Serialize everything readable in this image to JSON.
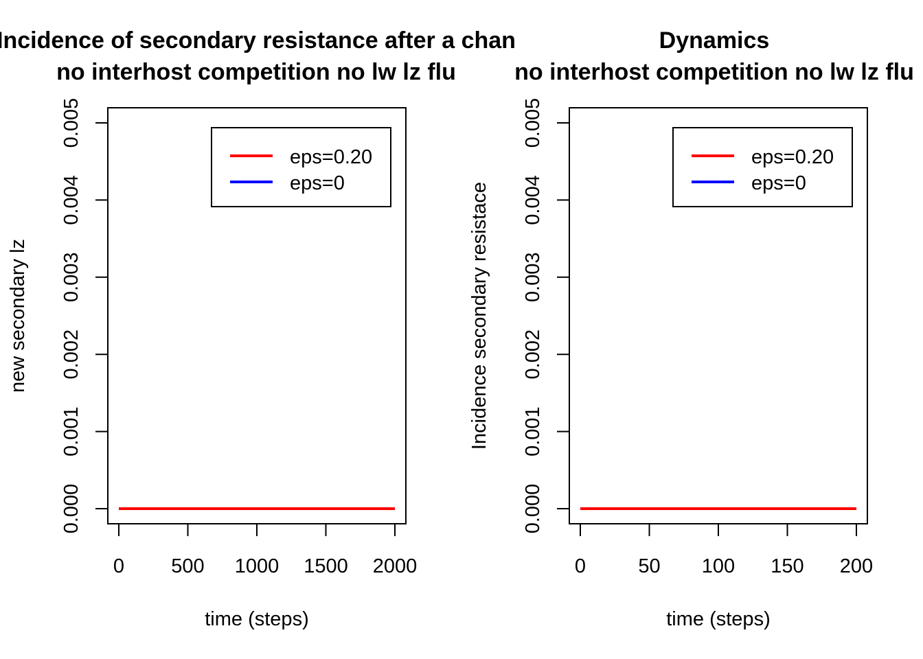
{
  "chart_data": [
    {
      "type": "line",
      "title": "Incidence of secondary resistance after a chan",
      "subtitle": "no interhost competition no lw lz flu",
      "xlabel": "time (steps)",
      "ylabel": "new secondary lz",
      "xlim": [
        0,
        2000
      ],
      "ylim": [
        0,
        0.005
      ],
      "x_ticks": [
        "0",
        "500",
        "1000",
        "1500",
        "2000"
      ],
      "x_tick_values": [
        0,
        500,
        1000,
        1500,
        2000
      ],
      "y_ticks": [
        "0.000",
        "0.001",
        "0.002",
        "0.003",
        "0.004",
        "0.005"
      ],
      "y_tick_values": [
        0,
        0.001,
        0.002,
        0.003,
        0.004,
        0.005
      ],
      "grid": false,
      "legend_position": "top-right",
      "series": [
        {
          "name": "eps=0.20",
          "color": "#ff0000",
          "x": [
            0,
            2000
          ],
          "y": [
            0,
            0
          ]
        },
        {
          "name": "eps=0",
          "color": "#0000ff",
          "x": [
            0,
            2000
          ],
          "y": [
            0,
            0
          ]
        }
      ],
      "draw_order": [
        1,
        0
      ]
    },
    {
      "type": "line",
      "title": "Dynamics",
      "subtitle": "no interhost competition no lw lz flu",
      "xlabel": "time (steps)",
      "ylabel": "Incidence secondary resistace",
      "xlim": [
        0,
        200
      ],
      "ylim": [
        0,
        0.005
      ],
      "x_ticks": [
        "0",
        "50",
        "100",
        "150",
        "200"
      ],
      "x_tick_values": [
        0,
        50,
        100,
        150,
        200
      ],
      "y_ticks": [
        "0.000",
        "0.001",
        "0.002",
        "0.003",
        "0.004",
        "0.005"
      ],
      "y_tick_values": [
        0,
        0.001,
        0.002,
        0.003,
        0.004,
        0.005
      ],
      "grid": false,
      "legend_position": "top-right",
      "series": [
        {
          "name": "eps=0.20",
          "color": "#ff0000",
          "x": [
            0,
            200
          ],
          "y": [
            0,
            0
          ]
        },
        {
          "name": "eps=0",
          "color": "#0000ff",
          "x": [
            0,
            200
          ],
          "y": [
            0,
            0
          ]
        }
      ],
      "draw_order": [
        1,
        0
      ]
    }
  ]
}
